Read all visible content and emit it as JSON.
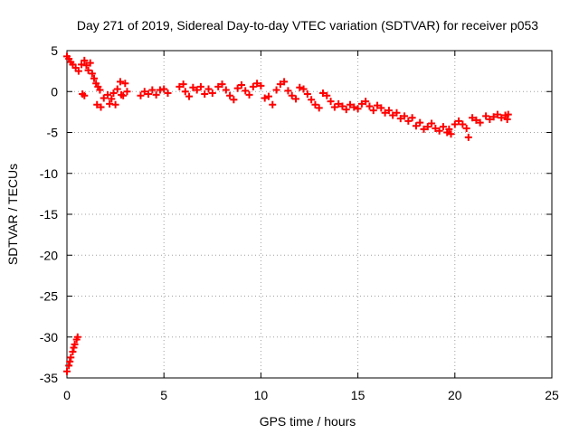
{
  "chart_data": {
    "type": "scatter",
    "title": "Day 271 of 2019, Sidereal Day-to-day VTEC variation (SDTVAR) for receiver p053",
    "xlabel": "GPS time / hours",
    "ylabel": "SDTVAR / TECUs",
    "xlim": [
      0,
      25
    ],
    "ylim": [
      -35,
      5
    ],
    "xticks": [
      0,
      5,
      10,
      15,
      20,
      25
    ],
    "yticks": [
      5,
      0,
      -5,
      -10,
      -15,
      -20,
      -25,
      -30,
      -35
    ],
    "grid": true,
    "marker": "plus",
    "color": "#ff0000",
    "series": [
      {
        "name": "p053",
        "points": [
          [
            0.0,
            4.3
          ],
          [
            0.1,
            4.0
          ],
          [
            0.2,
            3.6
          ],
          [
            0.3,
            3.3
          ],
          [
            0.45,
            2.9
          ],
          [
            0.6,
            2.5
          ],
          [
            0.75,
            3.3
          ],
          [
            0.9,
            3.8
          ],
          [
            1.0,
            3.2
          ],
          [
            1.1,
            2.6
          ],
          [
            1.2,
            3.5
          ],
          [
            1.3,
            2.2
          ],
          [
            1.4,
            1.6
          ],
          [
            1.5,
            1.0
          ],
          [
            1.6,
            0.6
          ],
          [
            1.7,
            0.2
          ],
          [
            0.8,
            -0.3
          ],
          [
            0.9,
            -0.5
          ],
          [
            1.55,
            -1.6
          ],
          [
            1.75,
            -1.9
          ],
          [
            1.9,
            -0.8
          ],
          [
            2.1,
            -0.4
          ],
          [
            2.3,
            -0.9
          ],
          [
            2.4,
            -0.2
          ],
          [
            2.6,
            0.3
          ],
          [
            2.8,
            -0.4
          ],
          [
            2.5,
            -1.6
          ],
          [
            2.2,
            -1.5
          ],
          [
            2.75,
            1.2
          ],
          [
            3.0,
            1.0
          ],
          [
            3.1,
            0.0
          ],
          [
            2.9,
            -0.5
          ],
          [
            3.8,
            -0.5
          ],
          [
            4.0,
            0.0
          ],
          [
            4.2,
            -0.3
          ],
          [
            4.4,
            0.2
          ],
          [
            4.6,
            -0.4
          ],
          [
            4.8,
            0.2
          ],
          [
            5.0,
            0.3
          ],
          [
            5.2,
            -0.2
          ],
          [
            5.8,
            0.6
          ],
          [
            6.0,
            0.9
          ],
          [
            6.1,
            0.0
          ],
          [
            6.3,
            -0.6
          ],
          [
            6.5,
            0.5
          ],
          [
            6.7,
            0.2
          ],
          [
            6.9,
            0.6
          ],
          [
            7.1,
            -0.3
          ],
          [
            7.3,
            0.3
          ],
          [
            7.5,
            -0.2
          ],
          [
            7.8,
            0.6
          ],
          [
            8.0,
            0.9
          ],
          [
            8.2,
            0.2
          ],
          [
            8.4,
            -0.5
          ],
          [
            8.6,
            -1.0
          ],
          [
            8.8,
            0.4
          ],
          [
            9.0,
            0.8
          ],
          [
            9.2,
            0.1
          ],
          [
            9.4,
            -0.4
          ],
          [
            9.6,
            0.6
          ],
          [
            9.8,
            1.0
          ],
          [
            10.0,
            0.7
          ],
          [
            10.2,
            -0.8
          ],
          [
            10.4,
            -0.6
          ],
          [
            10.6,
            -1.6
          ],
          [
            10.8,
            0.2
          ],
          [
            11.0,
            0.9
          ],
          [
            11.2,
            1.2
          ],
          [
            11.4,
            0.1
          ],
          [
            11.6,
            -0.5
          ],
          [
            11.8,
            -0.9
          ],
          [
            12.0,
            0.5
          ],
          [
            12.2,
            0.3
          ],
          [
            12.4,
            -0.3
          ],
          [
            12.6,
            -1.0
          ],
          [
            12.8,
            -1.6
          ],
          [
            13.0,
            -2.0
          ],
          [
            13.2,
            -0.2
          ],
          [
            13.4,
            -0.5
          ],
          [
            13.6,
            -1.2
          ],
          [
            13.8,
            -1.9
          ],
          [
            14.0,
            -1.5
          ],
          [
            14.2,
            -1.8
          ],
          [
            14.4,
            -2.2
          ],
          [
            14.6,
            -1.6
          ],
          [
            14.8,
            -1.9
          ],
          [
            15.0,
            -2.1
          ],
          [
            15.2,
            -1.5
          ],
          [
            15.4,
            -1.2
          ],
          [
            15.6,
            -1.8
          ],
          [
            15.8,
            -2.3
          ],
          [
            16.0,
            -1.7
          ],
          [
            16.2,
            -2.0
          ],
          [
            16.4,
            -2.6
          ],
          [
            16.6,
            -2.3
          ],
          [
            16.8,
            -2.9
          ],
          [
            17.0,
            -2.6
          ],
          [
            17.2,
            -3.3
          ],
          [
            17.4,
            -3.0
          ],
          [
            17.6,
            -3.6
          ],
          [
            17.8,
            -3.2
          ],
          [
            18.0,
            -4.2
          ],
          [
            18.2,
            -3.8
          ],
          [
            18.4,
            -4.6
          ],
          [
            18.6,
            -4.3
          ],
          [
            18.8,
            -3.9
          ],
          [
            19.0,
            -4.5
          ],
          [
            19.2,
            -4.8
          ],
          [
            19.4,
            -4.3
          ],
          [
            19.6,
            -5.0
          ],
          [
            19.7,
            -4.6
          ],
          [
            19.8,
            -5.2
          ],
          [
            20.0,
            -4.0
          ],
          [
            20.2,
            -3.6
          ],
          [
            20.4,
            -4.0
          ],
          [
            20.6,
            -4.5
          ],
          [
            20.7,
            -5.6
          ],
          [
            20.9,
            -3.2
          ],
          [
            21.1,
            -3.5
          ],
          [
            21.3,
            -3.8
          ],
          [
            21.6,
            -3.0
          ],
          [
            21.8,
            -3.4
          ],
          [
            22.0,
            -3.1
          ],
          [
            22.2,
            -2.8
          ],
          [
            22.4,
            -3.2
          ],
          [
            22.6,
            -2.9
          ],
          [
            22.7,
            -3.4
          ],
          [
            22.75,
            -2.8
          ],
          [
            0.0,
            -34.2
          ],
          [
            0.1,
            -33.5
          ],
          [
            0.15,
            -33.0
          ],
          [
            0.2,
            -32.5
          ],
          [
            0.3,
            -31.8
          ],
          [
            0.35,
            -31.3
          ],
          [
            0.4,
            -30.9
          ],
          [
            0.5,
            -30.3
          ],
          [
            0.55,
            -30.0
          ]
        ]
      }
    ]
  }
}
